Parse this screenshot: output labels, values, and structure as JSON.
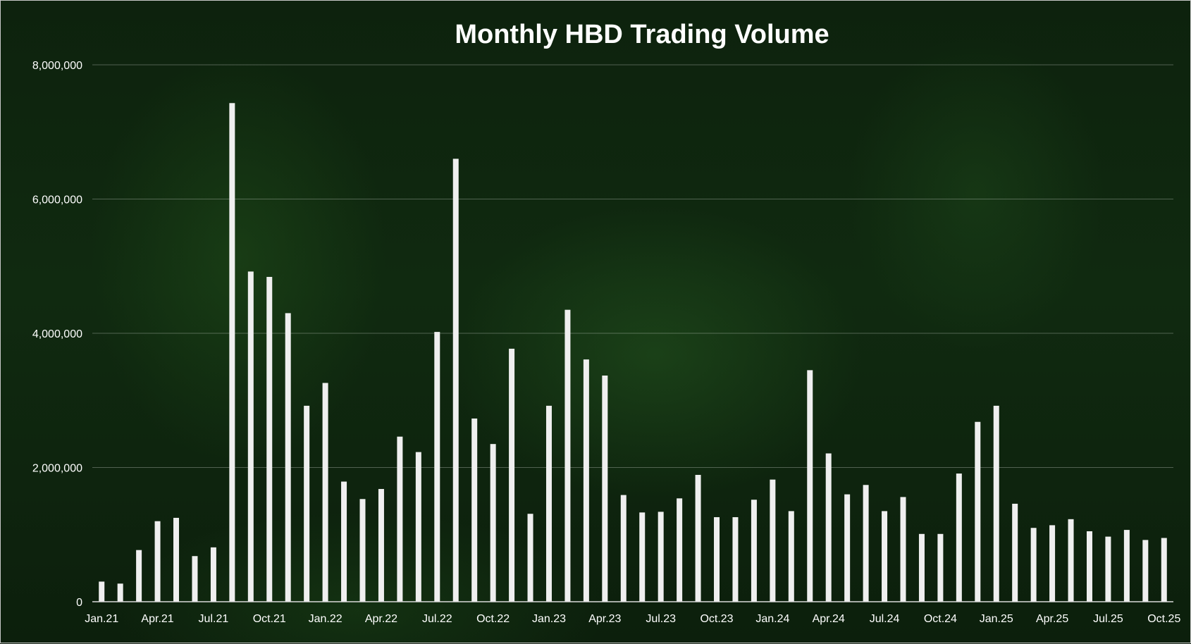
{
  "chart_data": {
    "type": "bar",
    "title": "Monthly HBD Trading Volume",
    "xlabel": "",
    "ylabel": "",
    "ylim": [
      0,
      8000000
    ],
    "yticks": [
      "0",
      "2,000,000",
      "4,000,000",
      "6,000,000",
      "8,000,000"
    ],
    "ytick_values": [
      0,
      2000000,
      4000000,
      6000000,
      8000000
    ],
    "grid": true,
    "legend": "none",
    "bar_color": "#efefef",
    "categories": [
      "Jan.21",
      "Feb.21",
      "Mar.21",
      "Apr.21",
      "May.21",
      "Jun.21",
      "Jul.21",
      "Aug.21",
      "Sep.21",
      "Oct.21",
      "Nov.21",
      "Dec.21",
      "Jan.22",
      "Feb.22",
      "Mar.22",
      "Apr.22",
      "May.22",
      "Jun.22",
      "Jul.22",
      "Aug.22",
      "Sep.22",
      "Oct.22",
      "Nov.22",
      "Dec.22",
      "Jan.23",
      "Feb.23",
      "Mar.23",
      "Apr.23",
      "May.23",
      "Jun.23",
      "Jul.23",
      "Aug.23",
      "Sep.23",
      "Oct.23",
      "Nov.23",
      "Dec.23",
      "Jan.24",
      "Feb.24",
      "Mar.24",
      "Apr.24",
      "May.24",
      "Jun.24",
      "Jul.24",
      "Aug.24",
      "Sep.24",
      "Oct.24",
      "Nov.24",
      "Dec.24",
      "Jan.25",
      "Feb.25",
      "Mar.25",
      "Apr.25",
      "May.25",
      "Jun.25",
      "Jul.25",
      "Aug.25",
      "Sep.25",
      "Oct.25"
    ],
    "visible_xtick_labels": [
      "Jan.21",
      "Apr.21",
      "Jul.21",
      "Oct.21",
      "Jan.22",
      "Apr.22",
      "Jul.22",
      "Oct.22",
      "Jan.23",
      "Apr.23",
      "Jul.23",
      "Oct.23",
      "Jan.24",
      "Apr.24",
      "Jul.24",
      "Oct.24",
      "Jan.25",
      "Apr.25",
      "Jul.25",
      "Oct.25"
    ],
    "values": [
      300000,
      270000,
      770000,
      1200000,
      1250000,
      680000,
      810000,
      7430000,
      4920000,
      4840000,
      4300000,
      2920000,
      3260000,
      1790000,
      1530000,
      1680000,
      2460000,
      2230000,
      4020000,
      6600000,
      2730000,
      2350000,
      3770000,
      1310000,
      2920000,
      4350000,
      3610000,
      3370000,
      1590000,
      1330000,
      1340000,
      1540000,
      1890000,
      1260000,
      1260000,
      1520000,
      1820000,
      1350000,
      3450000,
      2210000,
      1600000,
      1740000,
      1350000,
      1560000,
      1010000,
      1010000,
      1910000,
      2680000,
      2920000,
      1460000,
      1100000,
      1140000,
      1230000,
      1050000,
      970000,
      1070000,
      920000,
      950000
    ]
  }
}
